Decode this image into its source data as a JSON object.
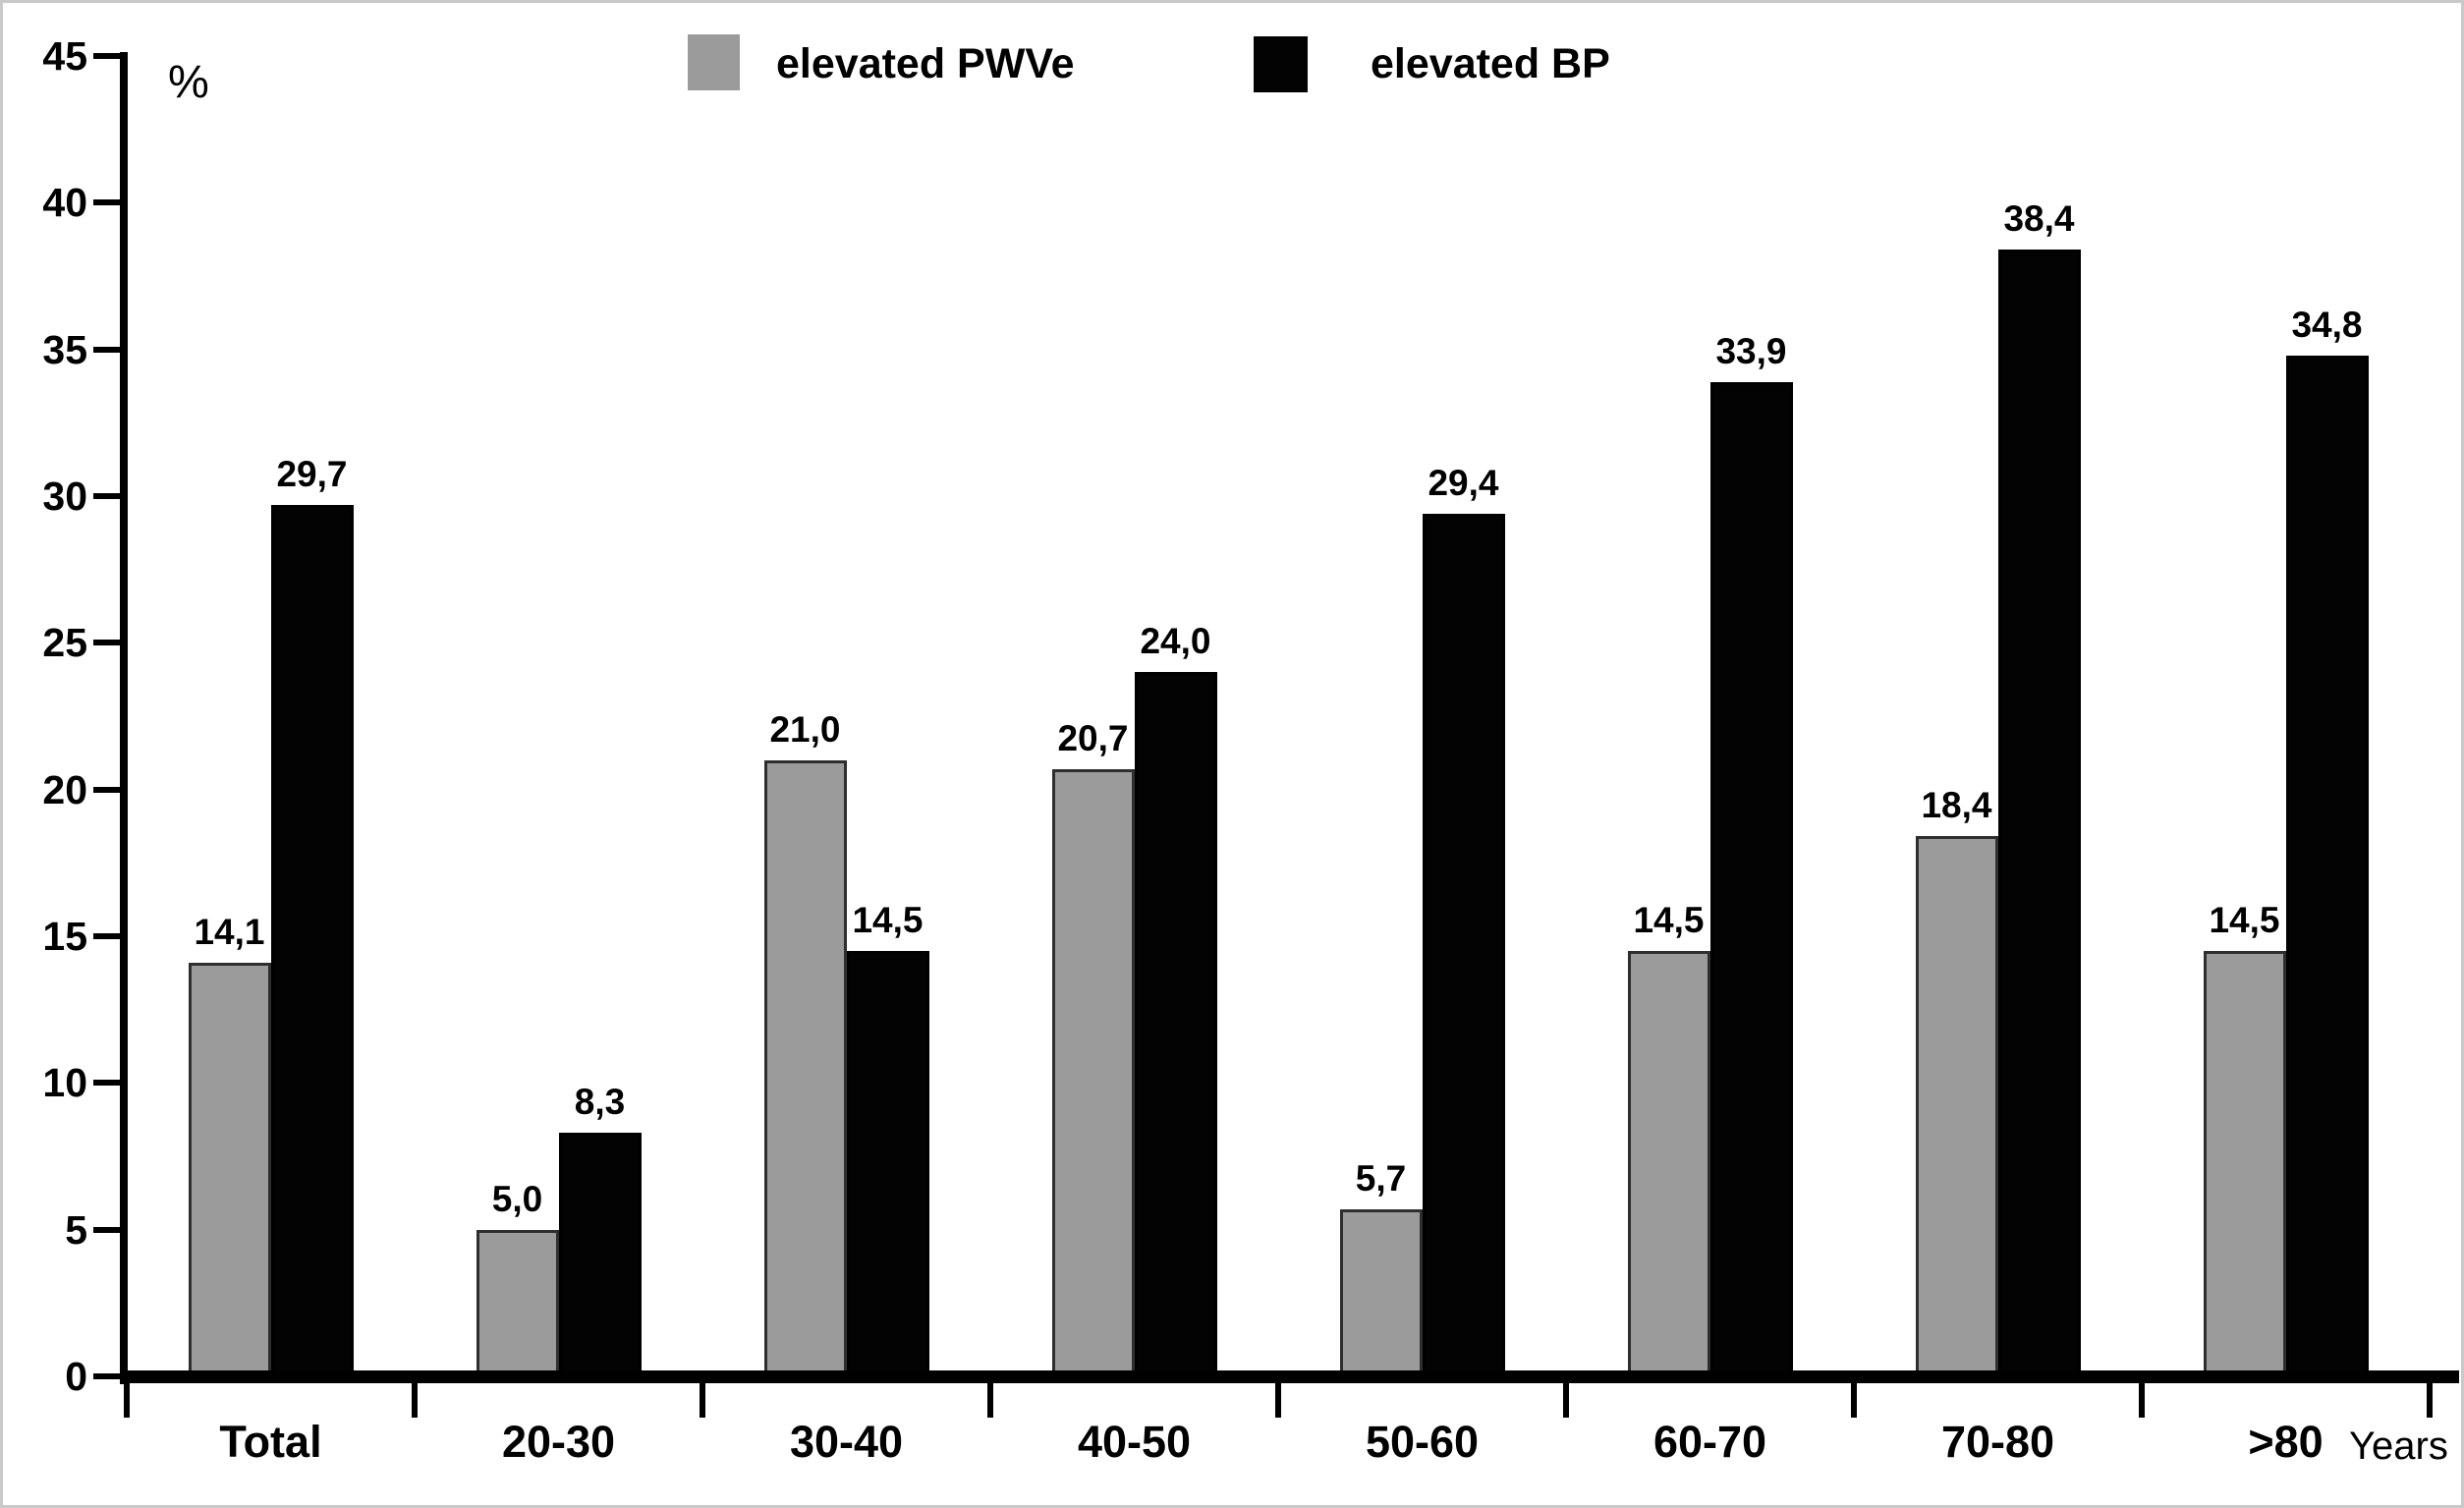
{
  "chart_data": {
    "type": "bar",
    "title": "",
    "ylabel": "%",
    "xlabel": "Years",
    "ylim": [
      0,
      45
    ],
    "ytick_step": 5,
    "ytick_labels": [
      "0",
      "5",
      "10",
      "15",
      "20",
      "25",
      "30",
      "35",
      "40",
      "45"
    ],
    "grid": false,
    "legend_position": "top",
    "categories": [
      "Total",
      "20-30",
      "30-40",
      "40-50",
      "50-60",
      "60-70",
      "70-80",
      ">80"
    ],
    "series": [
      {
        "name": "elevated PWVe",
        "color": "#9b9b9b",
        "values": [
          14.1,
          5.0,
          21.0,
          20.7,
          5.7,
          14.5,
          18.4,
          14.5
        ],
        "labels": [
          "14,1",
          "5,0",
          "21,0",
          "20,7",
          "5,7",
          "14,5",
          "18,4",
          "14,5"
        ]
      },
      {
        "name": "elevated BP",
        "color": "#030303",
        "values": [
          29.7,
          8.3,
          14.5,
          24.0,
          29.4,
          33.9,
          38.4,
          34.8
        ],
        "labels": [
          "29,7",
          "8,3",
          "14,5",
          "24,0",
          "29,4",
          "33,9",
          "38,4",
          "34,8"
        ]
      }
    ]
  },
  "axis": {
    "percent_label": "%",
    "years_label": "Years"
  },
  "legend": {
    "items": [
      {
        "label": "elevated PWVe",
        "color": "#9b9b9b"
      },
      {
        "label": "elevated BP",
        "color": "#030303"
      }
    ]
  }
}
